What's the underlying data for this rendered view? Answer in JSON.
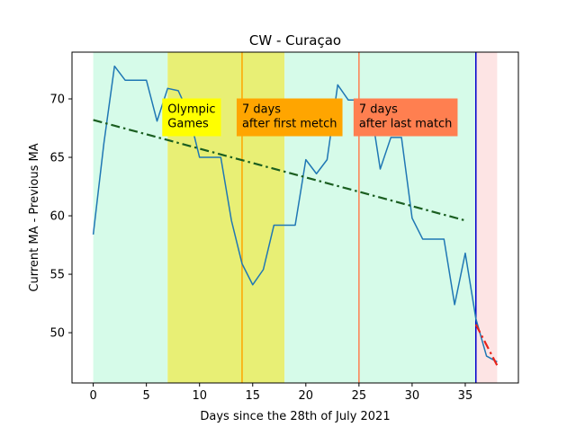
{
  "chart_data": {
    "type": "line",
    "title": "CW - Curaçao",
    "xlabel": "Days since the 28th of July 2021",
    "ylabel": "Current MA - Previous MA",
    "xlim": [
      -2,
      40
    ],
    "ylim": [
      45.7,
      74.0
    ],
    "xticks": [
      0,
      5,
      10,
      15,
      20,
      25,
      30,
      35
    ],
    "yticks": [
      50,
      55,
      60,
      65,
      70
    ],
    "grid": false,
    "regions": [
      {
        "x0": 0,
        "x1": 7,
        "color": "#d6fbe9"
      },
      {
        "x0": 7,
        "x1": 18,
        "color": "#e8ef75"
      },
      {
        "x0": 18,
        "x1": 36,
        "color": "#d6fbe9"
      },
      {
        "x0": 36,
        "x1": 38,
        "color": "#fde4e4"
      }
    ],
    "vlines": [
      {
        "x": 14,
        "color": "#ffa500"
      },
      {
        "x": 25,
        "color": "#ff7f50"
      },
      {
        "x": 36,
        "color": "#0000cc"
      }
    ],
    "annotations": [
      {
        "text": [
          "Olympic",
          "Games"
        ],
        "x": 7,
        "y": 68.5,
        "bg": "#ffff00"
      },
      {
        "text": [
          "7 days",
          "after first metch"
        ],
        "x": 14,
        "y": 68.5,
        "bg": "#ffa500"
      },
      {
        "text": [
          "7 days",
          "after last match"
        ],
        "x": 25,
        "y": 68.5,
        "bg": "#ff7f50"
      }
    ],
    "series": [
      {
        "style": "solid",
        "color": "#1f77b4",
        "x": [
          0,
          1,
          2,
          3,
          4,
          5,
          6,
          7,
          8,
          9,
          10,
          11,
          12,
          13,
          14,
          15,
          16,
          17,
          18,
          19,
          20,
          21,
          22,
          23,
          24,
          25,
          26,
          27,
          28,
          29,
          30,
          31,
          32,
          33,
          34,
          35,
          36,
          37,
          38
        ],
        "y": [
          58.4,
          66.2,
          72.8,
          71.6,
          71.6,
          71.6,
          68.1,
          70.9,
          70.7,
          68.7,
          65.0,
          65.0,
          65.0,
          59.6,
          55.9,
          54.1,
          55.4,
          59.2,
          59.2,
          59.2,
          64.8,
          63.6,
          64.8,
          71.2,
          69.9,
          69.9,
          69.9,
          64.0,
          66.7,
          66.7,
          59.8,
          58.0,
          58.0,
          58.0,
          52.4,
          56.8,
          51.2,
          48.0,
          47.5
        ]
      },
      {
        "style": "dashdot",
        "color": "#1a5e20",
        "x": [
          0,
          35
        ],
        "y": [
          68.2,
          59.6
        ]
      },
      {
        "style": "dashdot",
        "color": "#e8231a",
        "x": [
          36,
          38
        ],
        "y": [
          50.7,
          47.2
        ]
      }
    ]
  }
}
